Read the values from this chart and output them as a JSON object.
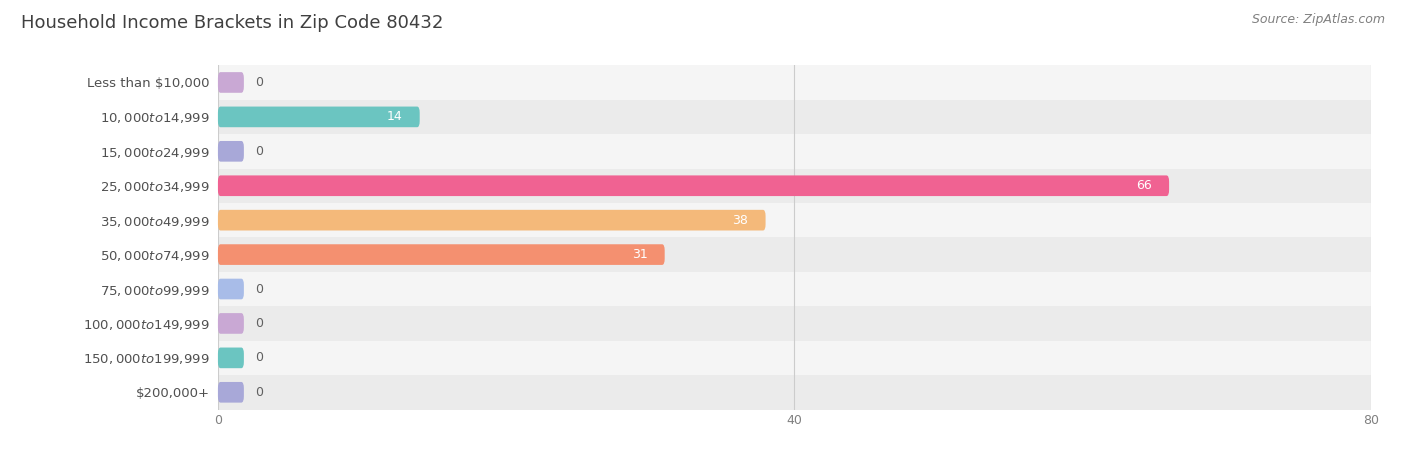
{
  "title": "Household Income Brackets in Zip Code 80432",
  "source": "Source: ZipAtlas.com",
  "categories": [
    "Less than $10,000",
    "$10,000 to $14,999",
    "$15,000 to $24,999",
    "$25,000 to $34,999",
    "$35,000 to $49,999",
    "$50,000 to $74,999",
    "$75,000 to $99,999",
    "$100,000 to $149,999",
    "$150,000 to $199,999",
    "$200,000+"
  ],
  "values": [
    0,
    14,
    0,
    66,
    38,
    31,
    0,
    0,
    0,
    0
  ],
  "bar_colors": [
    "#c9a8d4",
    "#6bc5c1",
    "#a8a8d8",
    "#f06292",
    "#f4b97a",
    "#f49070",
    "#a8bce8",
    "#c9a8d4",
    "#6bc5c1",
    "#a8a8d8"
  ],
  "background_color": "#ffffff",
  "row_bg_even": "#f5f5f5",
  "row_bg_odd": "#ebebeb",
  "xlim": [
    0,
    80
  ],
  "xticks": [
    0,
    40,
    80
  ],
  "title_fontsize": 13,
  "label_fontsize": 9.5,
  "value_fontsize": 9,
  "source_fontsize": 9,
  "title_color": "#404040",
  "label_color": "#505050",
  "tick_color": "#808080",
  "value_color_inside": "#ffffff",
  "value_color_outside": "#606060",
  "source_color": "#808080",
  "bar_height": 0.6,
  "stub_val": 1.8,
  "grid_color": "#cccccc",
  "grid_lw": 0.8
}
